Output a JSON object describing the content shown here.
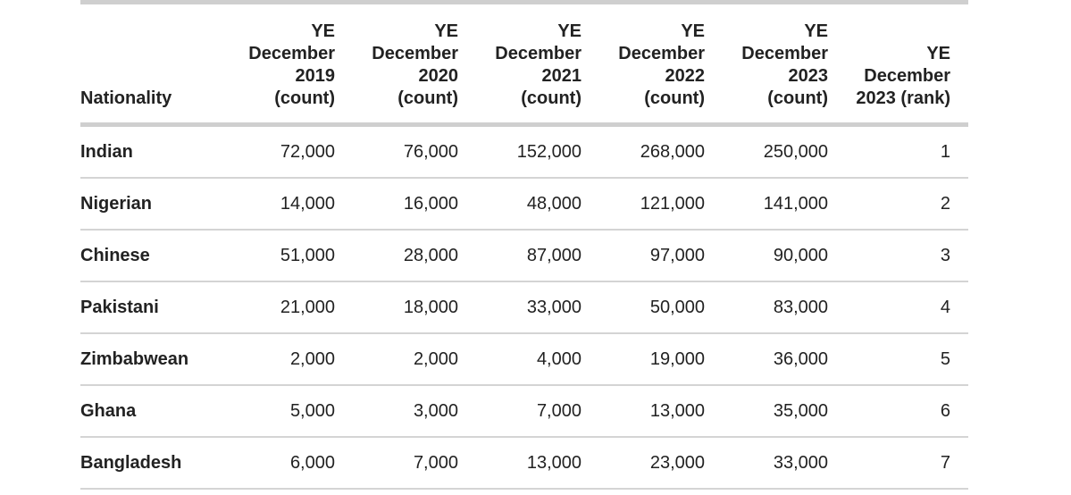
{
  "table": {
    "header": [
      "Nationality",
      "YE December 2019 (count)",
      "YE December 2020 (count)",
      "YE December 2021 (count)",
      "YE December 2022 (count)",
      "YE December 2023 (count)",
      "YE December 2023 (rank)"
    ],
    "rows": [
      [
        "Indian",
        "72,000",
        "76,000",
        "152,000",
        "268,000",
        "250,000",
        "1"
      ],
      [
        "Nigerian",
        "14,000",
        "16,000",
        "48,000",
        "121,000",
        "141,000",
        "2"
      ],
      [
        "Chinese",
        "51,000",
        "28,000",
        "87,000",
        "97,000",
        "90,000",
        "3"
      ],
      [
        "Pakistani",
        "21,000",
        "18,000",
        "33,000",
        "50,000",
        "83,000",
        "4"
      ],
      [
        "Zimbabwean",
        "2,000",
        "2,000",
        "4,000",
        "19,000",
        "36,000",
        "5"
      ],
      [
        "Ghana",
        "5,000",
        "3,000",
        "7,000",
        "13,000",
        "35,000",
        "6"
      ],
      [
        "Bangladesh",
        "6,000",
        "7,000",
        "13,000",
        "23,000",
        "33,000",
        "7"
      ]
    ]
  }
}
